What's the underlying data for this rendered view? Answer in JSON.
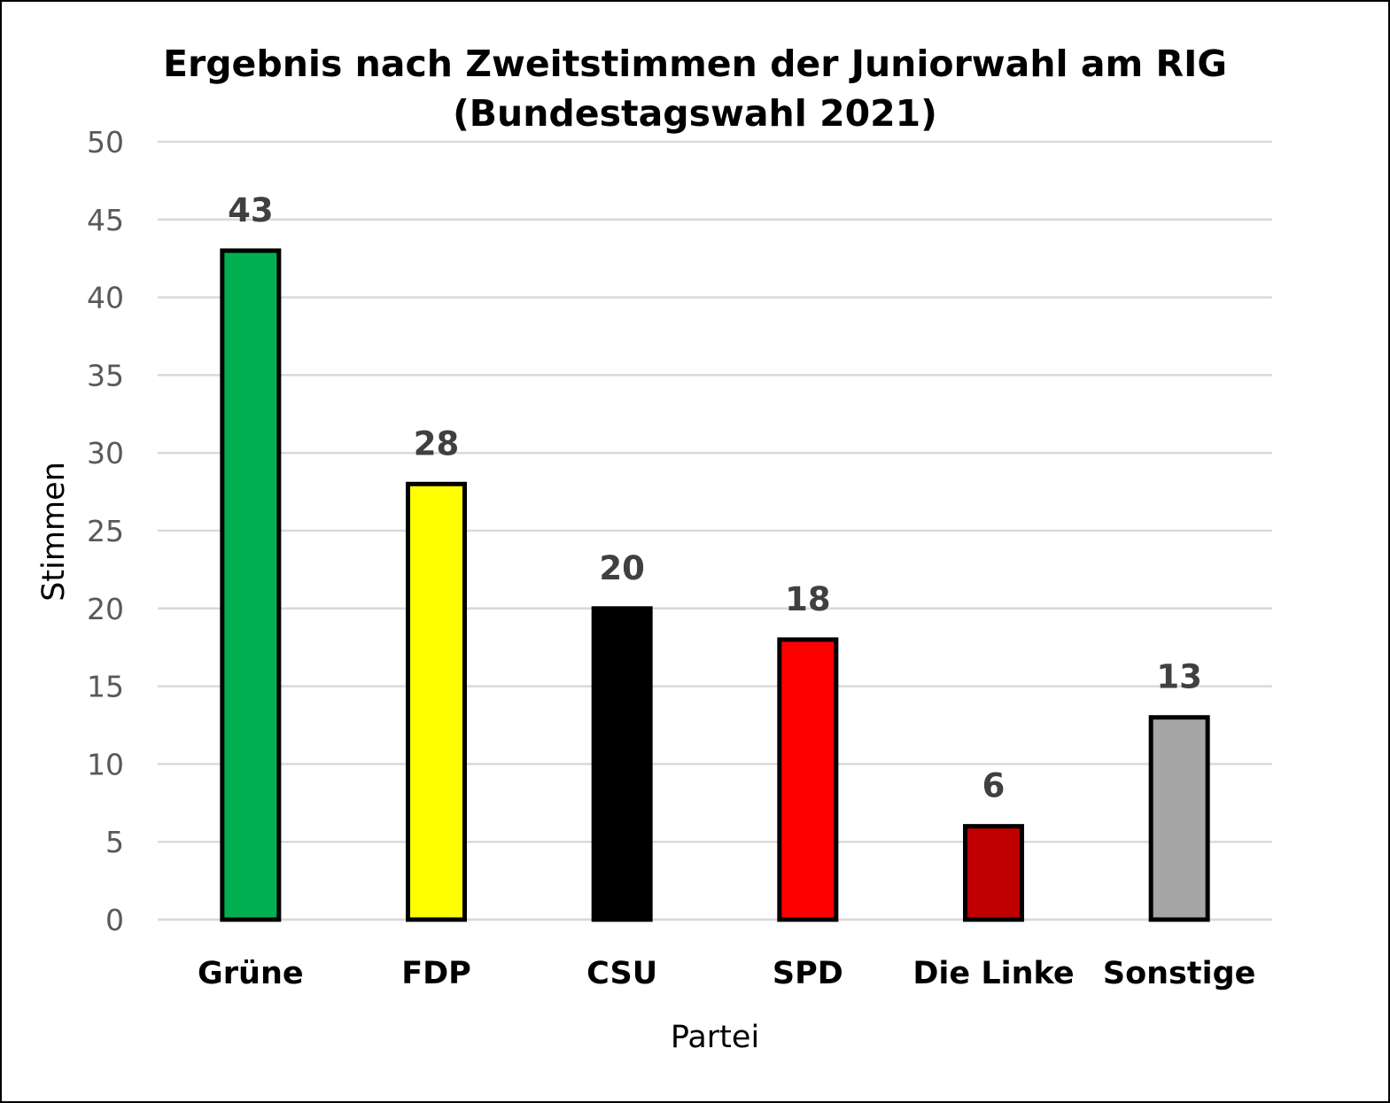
{
  "chart_data": {
    "type": "bar",
    "title_lines": [
      "Ergebnis nach Zweitstimmen der Juniorwahl am RIG",
      "(Bundestagswahl 2021)"
    ],
    "xlabel": "Partei",
    "ylabel": "Stimmen",
    "categories": [
      "Grüne",
      "FDP",
      "CSU",
      "SPD",
      "Die Linke",
      "Sonstige"
    ],
    "values": [
      43,
      28,
      20,
      18,
      6,
      13
    ],
    "colors": [
      "#00b050",
      "#ffff00",
      "#000000",
      "#ff0000",
      "#c00000",
      "#a6a6a6"
    ],
    "bar_outline_color": "#000000",
    "ylim": [
      0,
      50
    ],
    "yticks": [
      0,
      5,
      10,
      15,
      20,
      25,
      30,
      35,
      40,
      45,
      50
    ],
    "grid": true,
    "grid_color": "#d9d9d9",
    "data_labels": true,
    "legend": "none"
  }
}
